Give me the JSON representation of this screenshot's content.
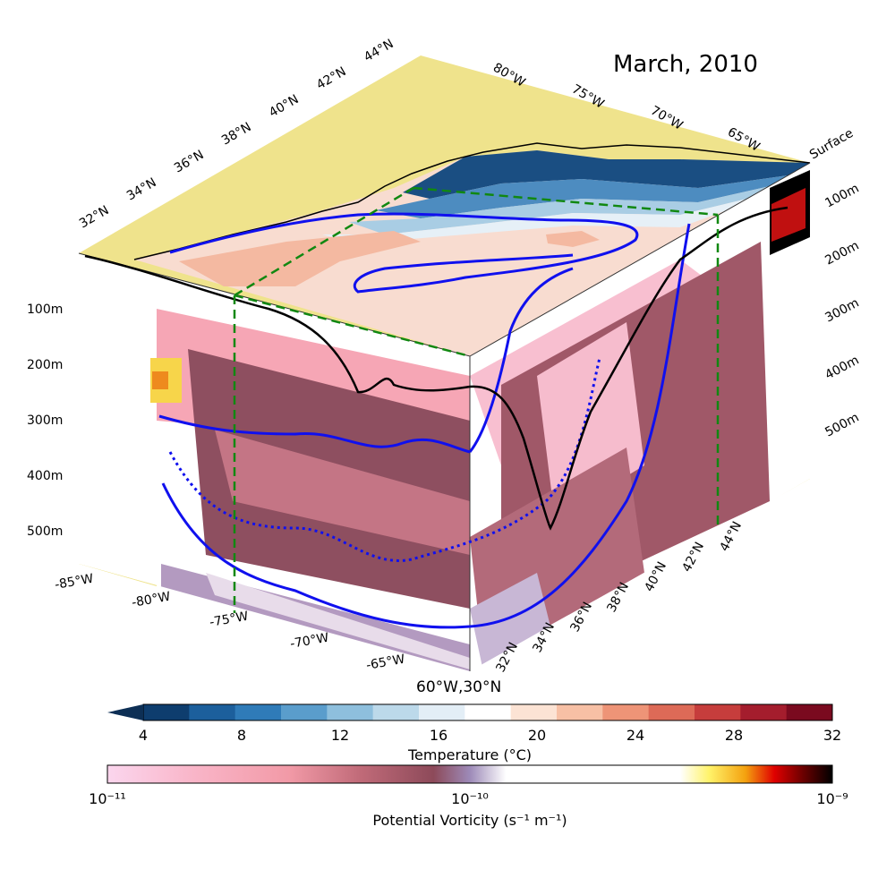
{
  "chart_data": {
    "type": "heatmap",
    "title": "March, 2010",
    "surface_label": "Surface",
    "depth_ticks_left": [
      "100m",
      "200m",
      "300m",
      "400m",
      "500m"
    ],
    "depth_ticks_right": [
      "100m",
      "200m",
      "300m",
      "400m",
      "500m"
    ],
    "lon_ticks_front": [
      "-85°W",
      "-80°W",
      "-75°W",
      "-70°W",
      "-65°W"
    ],
    "corner_label": "60°W,30°N",
    "lat_ticks_right": [
      "32°N",
      "34°N",
      "36°N",
      "38°N",
      "40°N",
      "42°N",
      "44°N"
    ],
    "lat_ticks_top": [
      "32°N",
      "34°N",
      "36°N",
      "38°N",
      "40°N",
      "42°N",
      "44°N"
    ],
    "lon_ticks_top": [
      "80°W",
      "75°W",
      "70°W",
      "65°W"
    ],
    "temperature_colorbar": {
      "label": "Temperature (°C)",
      "ticks": [
        "4",
        "8",
        "12",
        "16",
        "20",
        "24",
        "28",
        "32"
      ],
      "range": [
        4,
        32
      ],
      "extend": "min",
      "colors": [
        "#0e3d6e",
        "#1c5f9c",
        "#2f7bb8",
        "#5a9dcc",
        "#8ebfdd",
        "#bcd9ea",
        "#e3eef6",
        "#ffffff",
        "#fce3d4",
        "#f7c0a5",
        "#ee9477",
        "#dd6a57",
        "#c63d3c",
        "#a41d2d",
        "#7a0a1f"
      ]
    },
    "pv_colorbar": {
      "label": "Potential Vorticity (s⁻¹ m⁻¹)",
      "ticks": [
        "10⁻¹¹",
        "10⁻¹⁰",
        "10⁻⁹"
      ],
      "scale": "log",
      "range": [
        1e-11,
        1e-09
      ]
    }
  }
}
